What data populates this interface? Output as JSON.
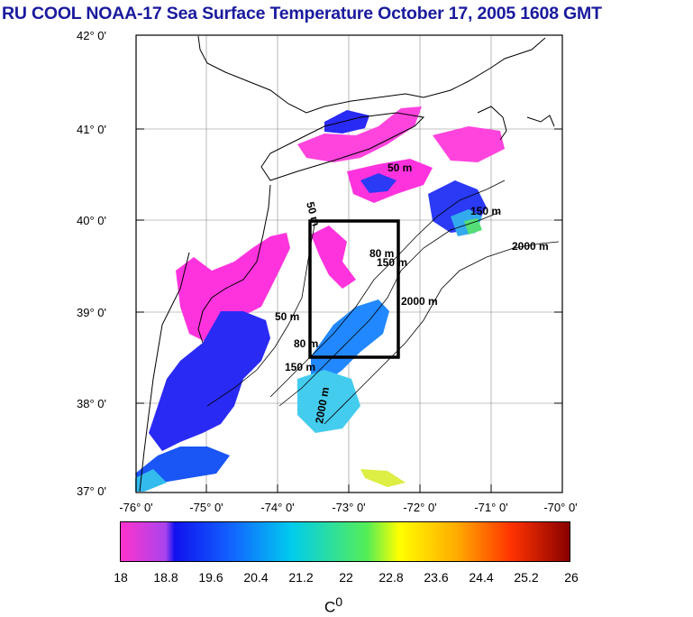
{
  "title": "RU COOL  NOAA-17 Sea Surface Temperature October 17, 2005 1608 GMT",
  "axes": {
    "lat_labels": [
      "42° 0'",
      "41° 0'",
      "40° 0'",
      "39° 0'",
      "38° 0'",
      "37° 0'"
    ],
    "lon_labels": [
      "-76° 0'",
      "-75° 0'",
      "-74° 0'",
      "-73° 0'",
      "-72° 0'",
      "-71° 0'",
      "-70° 0'"
    ]
  },
  "isobaths": [
    "50 m",
    "50 m",
    "50 m",
    "80 m",
    "80 m",
    "150 m",
    "150 m",
    "150 m",
    "2000 m",
    "2000 m",
    "2000 m"
  ],
  "study_box": {
    "lon_min": -73.4,
    "lon_max": -72.3,
    "lat_min": 38.5,
    "lat_max": 40.0
  },
  "colorbar": {
    "labels": [
      "18",
      "18.8",
      "19.6",
      "20.4",
      "21.2",
      "22",
      "22.8",
      "23.6",
      "24.4",
      "25.2",
      "26"
    ],
    "units_label": "C",
    "units_sup": "0",
    "colors": [
      "#ff33cc",
      "#1111ee",
      "#2288ff",
      "#00ddee",
      "#33ee77",
      "#ffff00",
      "#ffaa00",
      "#ff3300",
      "#990000"
    ]
  },
  "colors": {
    "title": "#1a1a9e",
    "cool": "#ff33dd",
    "mid": "#2a2af5",
    "warm": "#33aaff"
  }
}
